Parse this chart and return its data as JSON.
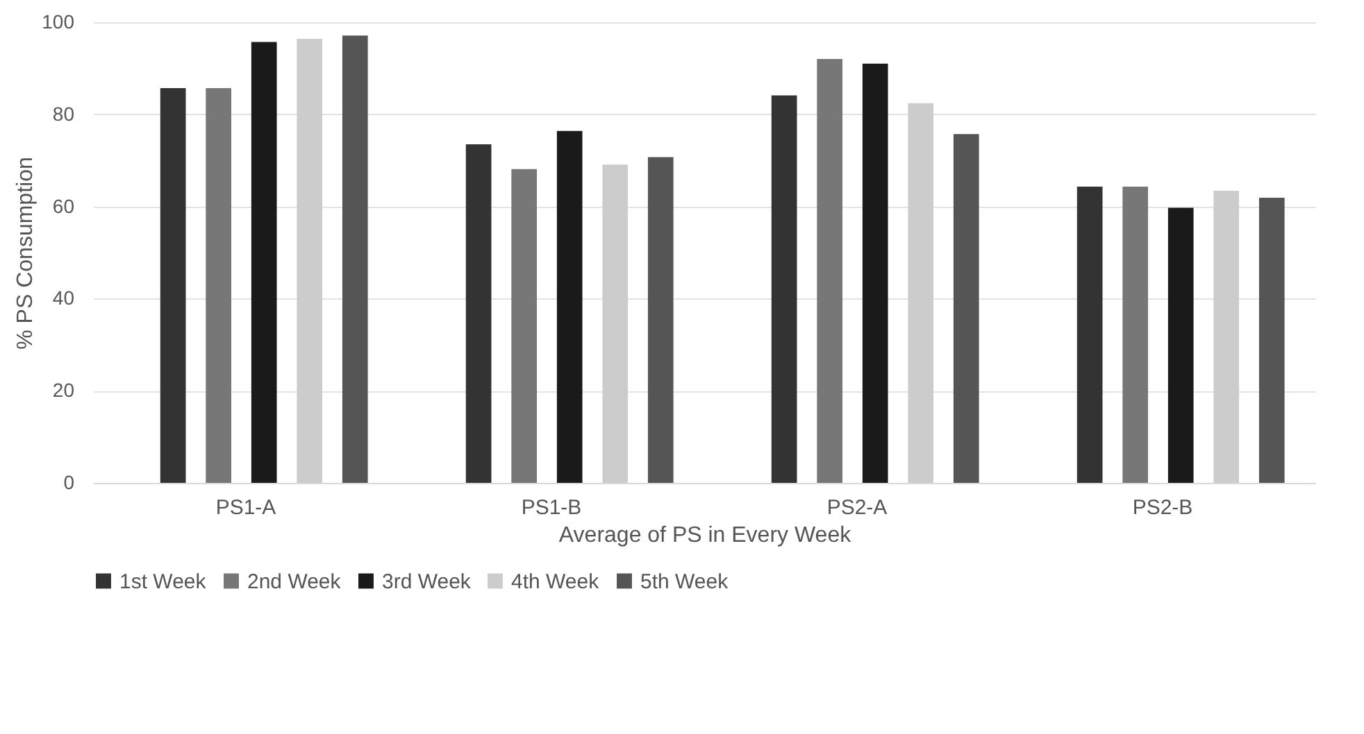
{
  "chart_data": {
    "type": "bar",
    "xlabel": "Average of PS in Every Week",
    "ylabel": "% PS Consumption",
    "categories": [
      "PS1-A",
      "PS1-B",
      "PS2-A",
      "PS2-B"
    ],
    "series": [
      {
        "name": "1st Week",
        "color": "#333333",
        "values": [
          85.7,
          73.5,
          84.1,
          64.3
        ]
      },
      {
        "name": "2nd Week",
        "color": "#777777",
        "values": [
          85.7,
          68.1,
          92.0,
          64.3
        ]
      },
      {
        "name": "3rd Week",
        "color": "#1a1a1a",
        "values": [
          95.7,
          76.4,
          91.0,
          59.7
        ]
      },
      {
        "name": "4th Week",
        "color": "#cccccc",
        "values": [
          96.4,
          69.1,
          82.4,
          63.4
        ]
      },
      {
        "name": "5th Week",
        "color": "#555555",
        "values": [
          97.1,
          70.7,
          75.7,
          61.9
        ]
      }
    ],
    "ylim": [
      0,
      100
    ],
    "yticks": [
      0,
      20,
      40,
      60,
      80,
      100
    ],
    "grid": "y",
    "legend": "bottom"
  }
}
